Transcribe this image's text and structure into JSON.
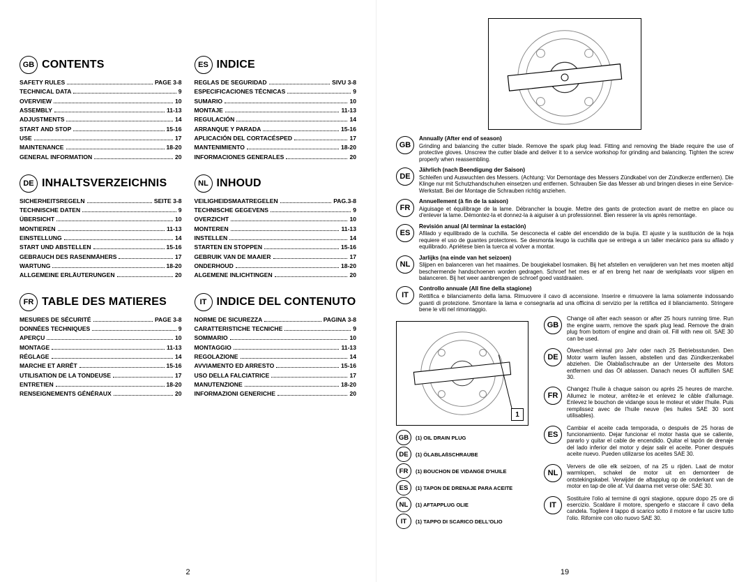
{
  "leftPage": {
    "pageNumber": "2",
    "tocs": [
      {
        "lang": "GB",
        "title": "CONTENTS",
        "items": [
          {
            "label": "SAFETY RULES",
            "page": "PAGE 3-8"
          },
          {
            "label": "TECHNICAL DATA",
            "page": "9"
          },
          {
            "label": "OVERVIEW",
            "page": "10"
          },
          {
            "label": "ASSEMBLY",
            "page": "11-13"
          },
          {
            "label": "ADJUSTMENTS",
            "page": "14"
          },
          {
            "label": "START AND STOP",
            "page": "15-16"
          },
          {
            "label": "USE",
            "page": "17"
          },
          {
            "label": "MAINTENANCE",
            "page": "18-20"
          },
          {
            "label": "GENERAL INFORMATION",
            "page": "20"
          }
        ]
      },
      {
        "lang": "ES",
        "title": "INDICE",
        "items": [
          {
            "label": "REGLAS DE SEGURIDAD",
            "page": "SIVU 3-8"
          },
          {
            "label": "ESPECIFICACIONES TÉCNICAS",
            "page": "9"
          },
          {
            "label": "SUMARIO",
            "page": "10"
          },
          {
            "label": "MONTAJE",
            "page": "11-13"
          },
          {
            "label": "REGULACIÓN",
            "page": "14"
          },
          {
            "label": "ARRANQUE Y PARADA",
            "page": "15-16"
          },
          {
            "label": "APLICACIÓN DEL CORTACÉSPED",
            "page": "17"
          },
          {
            "label": "MANTENIMIENTO",
            "page": "18-20"
          },
          {
            "label": "INFORMACIONES GENERALES",
            "page": "20"
          }
        ]
      },
      {
        "lang": "DE",
        "title": "INHALTSVERZEICHNIS",
        "items": [
          {
            "label": "SICHERHEITSREGELN",
            "page": "SEITE 3-8"
          },
          {
            "label": "TECHNISCHE DATEN",
            "page": "9"
          },
          {
            "label": "ÜBERSICHT",
            "page": "10"
          },
          {
            "label": "MONTIEREN",
            "page": "11-13"
          },
          {
            "label": "EINSTELLUNG",
            "page": "14"
          },
          {
            "label": "START UND ABSTELLEN",
            "page": "15-16"
          },
          {
            "label": "GEBRAUCH DES RASENMÄHERS",
            "page": "17"
          },
          {
            "label": "WARTUNG",
            "page": "18-20"
          },
          {
            "label": "ALLGEMEINE ERLÄUTERUNGEN",
            "page": "20"
          }
        ]
      },
      {
        "lang": "NL",
        "title": "INHOUD",
        "items": [
          {
            "label": "VEILIGHEIDSMAATREGELEN",
            "page": "PAG.3-8"
          },
          {
            "label": "TECHNISCHE GEGEVENS",
            "page": "9"
          },
          {
            "label": "OVERZICHT",
            "page": "10"
          },
          {
            "label": "MONTEREN",
            "page": "11-13"
          },
          {
            "label": "INSTELLEN",
            "page": "14"
          },
          {
            "label": "STARTEN EN STOPPEN",
            "page": "15-16"
          },
          {
            "label": "GEBRUIK VAN DE MAAIER",
            "page": "17"
          },
          {
            "label": "ONDERHOUD",
            "page": "18-20"
          },
          {
            "label": "ALGEMENE INLICHTINGEN",
            "page": "20"
          }
        ]
      },
      {
        "lang": "FR",
        "title": "TABLE DES MATIERES",
        "items": [
          {
            "label": "MESURES DE SÉCURITÉ",
            "page": "PAGE 3-8"
          },
          {
            "label": "DONNÉES TECHNIQUES",
            "page": "9"
          },
          {
            "label": "APERÇU",
            "page": "10"
          },
          {
            "label": "MONTAGE",
            "page": "11-13"
          },
          {
            "label": "RÉGLAGE",
            "page": "14"
          },
          {
            "label": "MARCHE ET ARRÊT",
            "page": "15-16"
          },
          {
            "label": "UTILISATION DE LA TONDEUSE",
            "page": "17"
          },
          {
            "label": "ENTRETIEN",
            "page": "18-20"
          },
          {
            "label": "RENSEIGNEMENTS GÉNÉRAUX",
            "page": "20"
          }
        ]
      },
      {
        "lang": "IT",
        "title": "INDICE DEL CONTENUTO",
        "items": [
          {
            "label": "NORME DE SICUREZZA",
            "page": "PAGINA 3-8"
          },
          {
            "label": "CARATTERISTICHE TECNICHE",
            "page": "9"
          },
          {
            "label": "SOMMARIO",
            "page": "10"
          },
          {
            "label": "MONTAGGIO",
            "page": "11-13"
          },
          {
            "label": "REGOLAZIONE",
            "page": "14"
          },
          {
            "label": "AVVIAMENTO ED ARRESTO",
            "page": "15-16"
          },
          {
            "label": "USO DELLA FALCIATRICE",
            "page": "17"
          },
          {
            "label": "MANUTENZIONE",
            "page": "18-20"
          },
          {
            "label": "INFORMAZIONI GENERICHE",
            "page": "20"
          }
        ]
      }
    ]
  },
  "rightPage": {
    "pageNumber": "19",
    "annualNotes": [
      {
        "lang": "GB",
        "title": "Annually (After end of season)",
        "body": "Grinding and balancing the cutter blade. Remove the spark plug lead. Fitting and removing the blade require the use of protective gloves. Unscrew the cutter blade and deliver it to a service workshop for grinding and balancing. Tighten the screw properly when reassembling."
      },
      {
        "lang": "DE",
        "title": "Jährlich (nach Beendigung der Saison)",
        "body": "Schleifen und Auswuchten des Messers. (Achtung: Vor Demontage des Messers Zündkabel von der Zündkerze entfernen). Die Klinge nur mit Schutzhandschuhen einsetzen und entfernen. Schrauben Sie das Messer ab und bringen dieses in eine Service-Werkstatt. Bei der Montage die Schrauben richtig anziehen."
      },
      {
        "lang": "FR",
        "title": "Annuellement (à fin de la saison)",
        "body": "Aiguisage et équilibrage de la lame. Débrancher la bougie. Mettre des gants de protection avant de mettre en place ou d'enlever la lame. Démontez-la et donnez-la à aiguiser à un professionnel. Bien resserer la vis après remontage."
      },
      {
        "lang": "ES",
        "title": "Revisión anual (Al terminar la estación)",
        "body": "Afilado y equilibrado de la cuchilla. Se desconecta el cable del encendido de la bujía. El ajuste y la sustitución de la hoja requiere el uso de guantes protectores. Se desmonta leugo la cuchilla que se entrega a un taller mecánico para su afilado y equilibrado. Apriétese bien la tuerca al volver a montar."
      },
      {
        "lang": "NL",
        "title": "Jarlijks (na einde van het seizoen)",
        "body": "Slijpen en balanceren van het maaimes. De bougiekabel losmaken. Bij het afstellen en verwijderen van het mes moeten altijd beschermende handschoenen worden gedragen. Schroef het mes er af en breng het naar de werkplaats voor slijpen en balanceren. Bij het weer aanbrengen de schroef goed vastdraaien."
      },
      {
        "lang": "IT",
        "title": "Controllo annuale (All fine della stagione)",
        "body": "Rettifica e bilanciamento della lama. Rimuovere il cavo di accensione. Inserire e rimuovere la lama solamente indossando guanti di protezione. Smontare la lama e consegnarla ad una officina di servizio per la rettifica ed il bilanciamento. Stringere bene le viti nel rimontaggio."
      }
    ],
    "legend": [
      {
        "lang": "GB",
        "text": "(1) OIL DRAIN PLUG"
      },
      {
        "lang": "DE",
        "text": "(1) ÖLABLAßSCHRAUBE"
      },
      {
        "lang": "FR",
        "text": "(1) BOUCHON DE VIDANGE D'HUILE"
      },
      {
        "lang": "ES",
        "text": "(1) TAPON DE DRENAJE PARA ACEITE"
      },
      {
        "lang": "NL",
        "text": "(1) AFTAPPLUG OLIE"
      },
      {
        "lang": "IT",
        "text": "(1) TAPPO DI SCARICO DELL'OLIO"
      }
    ],
    "oilNotes": [
      {
        "lang": "GB",
        "body": "Change oil after each season or after 25 hours running time. Run the engine warm, remove the spark plug lead. Remove the drain plug from bottom of engine and drain oil. Fill with new oil. SAE 30 can be used."
      },
      {
        "lang": "DE",
        "body": "Ölwechsel einmal pro Jahr oder nach 25 Betriebsstunden. Den Motor warm laufen lassen, abstellen und das Zündkerzenkabel abziehen. Die Ölablaßschraube an der Unterseite des Motors entfernen und das Öl ablassen. Danach neues Öl auffüllen SAE 30."
      },
      {
        "lang": "FR",
        "body": "Changez l'huile à chaque saison ou après 25 heures de marche. Allumez le moteur, arrêtez-le et enlevez le câble d'allumage. Enlevez le bouchon de vidange sous le moteur et vider l'huile. Puis remplissez avec de l'huile neuve (les huiles SAE 30 sont utilisables)."
      },
      {
        "lang": "ES",
        "body": "Cambiar el aceite cada temporada, o después de 25 horas de funcionamiento. Dejar funcionar el motor hasta que se caliente, pararlo y quitar el cable de encendido. Quitar el tapón de drenaje del lado inferior del motor y dejar salir el aceite. Poner después aceite nuevo. Pueden utilizarse los aceites SAE 30."
      },
      {
        "lang": "NL",
        "body": "Ververs de olie elk seizoen, of na 25 u rijden. Laat de motor warmlopen, schakel de motor uit en demonteer de ontstekingskabel. Verwijder de aftapplug op de onderkant van de motor en tap de olie af. Vul daarna met verse olie: SAE 30."
      },
      {
        "lang": "IT",
        "body": "Sostituire l'olio al termine di ogni stagione, oppure dopo 25 ore di esercizio. Scaldare il motore, spengerlo e staccare il cavo della candela. Togliere il tappo di scarico sotto il motore e far uscire tutto l'olio. Rifornire con olio nuovo SAE 30."
      }
    ],
    "callout": "1"
  }
}
